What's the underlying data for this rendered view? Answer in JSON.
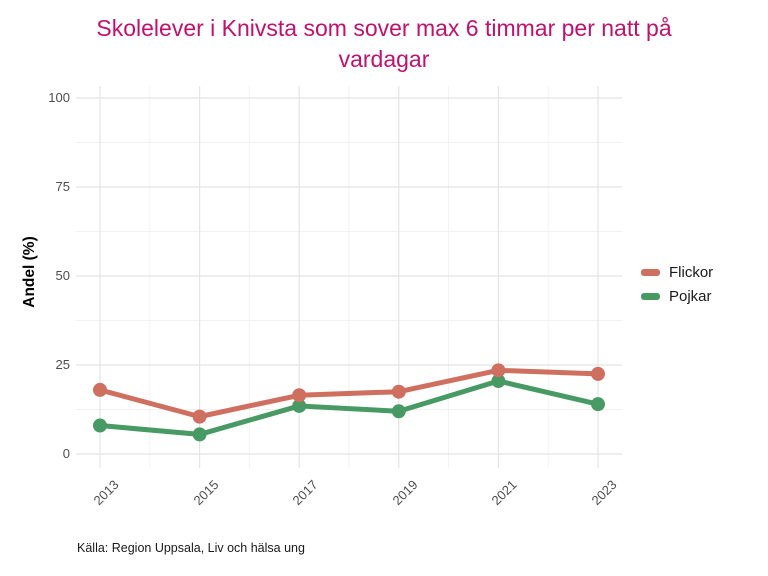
{
  "chart_data": {
    "type": "line",
    "title": "Skolelever i Knivsta som sover max 6 timmar per natt på vardagar",
    "title_color": "#C0116E",
    "ylabel": "Andel (%)",
    "xlabel": "",
    "ylim": [
      0,
      100
    ],
    "yticks": [
      0,
      25,
      50,
      75,
      100
    ],
    "minor_yticks": [
      12.5,
      37.5,
      62.5,
      87.5
    ],
    "x": [
      2013,
      2015,
      2017,
      2019,
      2021,
      2023
    ],
    "x_labels": [
      "2013",
      "2015",
      "2017",
      "2019",
      "2021",
      "2023"
    ],
    "minor_x": [
      2014,
      2016,
      2018,
      2020,
      2022
    ],
    "grid": "on",
    "legend_position": "right",
    "series": [
      {
        "name": "Flickor",
        "color": "#CE6F5F",
        "values": [
          18,
          10.5,
          16.5,
          17.5,
          23.5,
          22.5
        ]
      },
      {
        "name": "Pojkar",
        "color": "#489A64",
        "values": [
          8,
          5.5,
          13.5,
          12,
          20.5,
          14
        ]
      }
    ],
    "source": "Källa: Region Uppsala, Liv och hälsa ung",
    "colors": {
      "major_grid": "#E4E4E4",
      "minor_grid": "#F1F1F1",
      "tick_text": "#4D4D4D",
      "panel_background": "#FFFFFF"
    }
  }
}
